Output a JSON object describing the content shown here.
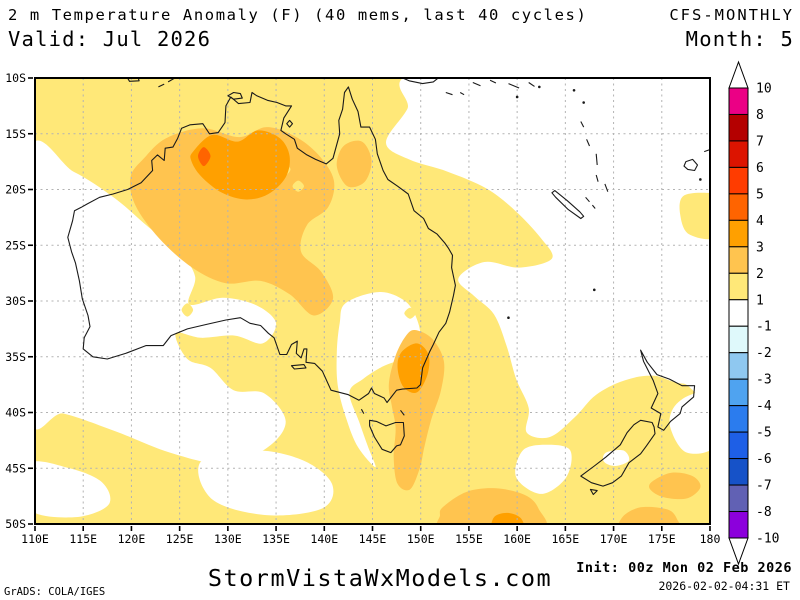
{
  "header": {
    "title": "2 m Temperature Anomaly (F) (40 mems, last 40 cycles)",
    "model": "CFS-MONTHLY",
    "valid_label": "Valid: Jul 2026",
    "month_label": "Month: 5"
  },
  "footer": {
    "engine_credit": "GrADS: COLA/IGES",
    "site": "StormVistaWxModels.com",
    "init_label": "Init: 00z Mon 02 Feb 2026",
    "generated": "2026-02-02-04:31 ET"
  },
  "colorbar": {
    "labels": [
      "10",
      "8",
      "7",
      "6",
      "5",
      "4",
      "3",
      "2",
      "1",
      "-1",
      "-2",
      "-3",
      "-4",
      "-5",
      "-6",
      "-7",
      "-8",
      "-10"
    ],
    "colors": [
      "#EB0085",
      "#B40000",
      "#DC1400",
      "#FF3C00",
      "#FF6400",
      "#FFA000",
      "#FFC44F",
      "#FFE878",
      "#FFFFFF",
      "#DFF9FB",
      "#8FC8F0",
      "#4FA3F0",
      "#2B7CEE",
      "#1E5FE6",
      "#1652C8",
      "#6161B4",
      "#8C00DC"
    ]
  },
  "map": {
    "lon_range": [
      110,
      180
    ],
    "lat_range": [
      10,
      50
    ],
    "grid_color": "#b3b3b3",
    "lat_ticks": [
      {
        "v": 10,
        "label": "10S"
      },
      {
        "v": 15,
        "label": "15S"
      },
      {
        "v": 20,
        "label": "20S"
      },
      {
        "v": 25,
        "label": "25S"
      },
      {
        "v": 30,
        "label": "30S"
      },
      {
        "v": 35,
        "label": "35S"
      },
      {
        "v": 40,
        "label": "40S"
      },
      {
        "v": 45,
        "label": "45S"
      },
      {
        "v": 50,
        "label": "50S"
      }
    ],
    "lon_ticks": [
      {
        "v": 110,
        "label": "110E"
      },
      {
        "v": 115,
        "label": "115E"
      },
      {
        "v": 120,
        "label": "120E"
      },
      {
        "v": 125,
        "label": "125E"
      },
      {
        "v": 130,
        "label": "130E"
      },
      {
        "v": 135,
        "label": "135E"
      },
      {
        "v": 140,
        "label": "140E"
      },
      {
        "v": 145,
        "label": "145E"
      },
      {
        "v": 150,
        "label": "150E"
      },
      {
        "v": 155,
        "label": "155E"
      },
      {
        "v": 160,
        "label": "160E"
      },
      {
        "v": 165,
        "label": "165E"
      },
      {
        "v": 170,
        "label": "170E"
      },
      {
        "v": 175,
        "label": "175E"
      },
      {
        "v": 180,
        "label": "180"
      }
    ],
    "level_colors": {
      "below_1": "#FFFFFF",
      "1_2": "#FFE878",
      "2_3": "#FFC44F",
      "3_4": "#FFA000",
      "4_5": "#FF6400"
    },
    "regions": [
      {
        "level": "below_1",
        "pts": [
          [
            109.3,
            17
          ],
          [
            114,
            18.4
          ],
          [
            118.3,
            20.8
          ],
          [
            121.8,
            23.4
          ],
          [
            124.8,
            25.4
          ],
          [
            126.6,
            27.8
          ],
          [
            126,
            30.3
          ],
          [
            129.5,
            29.7
          ],
          [
            133,
            30.4
          ],
          [
            135,
            32
          ],
          [
            133.6,
            33.8
          ],
          [
            130.7,
            33.1
          ],
          [
            127.2,
            33.3
          ],
          [
            124.6,
            32.9
          ],
          [
            125.8,
            35.2
          ],
          [
            128.2,
            36
          ],
          [
            130.6,
            38
          ],
          [
            133.8,
            38.3
          ],
          [
            136,
            40.8
          ],
          [
            134,
            43.2
          ],
          [
            129.6,
            44.6
          ],
          [
            124,
            43.6
          ],
          [
            118.4,
            41.7
          ],
          [
            113,
            40.1
          ],
          [
            109.3,
            39.8
          ]
        ]
      },
      {
        "level": "below_1",
        "pts": [
          [
            142.2,
            30.2
          ],
          [
            145.6,
            29.2
          ],
          [
            148.2,
            29.9
          ],
          [
            149.5,
            31.4
          ],
          [
            149.9,
            33.4
          ],
          [
            148.4,
            35
          ],
          [
            146,
            35.9
          ],
          [
            144,
            37
          ],
          [
            142.6,
            38.2
          ],
          [
            143.6,
            40.8
          ],
          [
            144.5,
            43
          ],
          [
            145.3,
            44.9
          ],
          [
            143.5,
            43.1
          ],
          [
            142.3,
            40.6
          ],
          [
            141.4,
            37.6
          ],
          [
            141.3,
            34.6
          ],
          [
            141.6,
            32
          ]
        ]
      },
      {
        "level": "below_1",
        "pts": [
          [
            150.6,
            9.4
          ],
          [
            148.6,
            12.8
          ],
          [
            146.4,
            15.8
          ],
          [
            148.8,
            17.3
          ],
          [
            152.8,
            18.4
          ],
          [
            156.8,
            19.9
          ],
          [
            159.8,
            21.9
          ],
          [
            162.4,
            24.3
          ],
          [
            163.6,
            26.2
          ],
          [
            160.2,
            27
          ],
          [
            156.6,
            26.5
          ],
          [
            153.9,
            28
          ],
          [
            155.6,
            29.6
          ],
          [
            157.6,
            31.2
          ],
          [
            158.9,
            34
          ],
          [
            159.9,
            37
          ],
          [
            161.2,
            39.6
          ],
          [
            161,
            41.8
          ],
          [
            163.4,
            42.2
          ],
          [
            166,
            40.4
          ],
          [
            168.2,
            38.4
          ],
          [
            171.2,
            37.1
          ],
          [
            174.2,
            36.7
          ],
          [
            177.2,
            37.4
          ],
          [
            180.7,
            36.6
          ],
          [
            180.7,
            9.4
          ]
        ]
      },
      {
        "level": "below_1",
        "pts": [
          [
            159.9,
            45.8
          ],
          [
            160.6,
            43.4
          ],
          [
            163.1,
            42.9
          ],
          [
            165.5,
            43.4
          ],
          [
            165.1,
            45.8
          ],
          [
            162.5,
            47.3
          ]
        ]
      },
      {
        "level": "below_1",
        "pts": [
          [
            169.2,
            43.6
          ],
          [
            171,
            43.4
          ],
          [
            171.6,
            44.3
          ],
          [
            170.2,
            44.8
          ],
          [
            169,
            44.4
          ]
        ]
      },
      {
        "level": "below_1",
        "pts": [
          [
            176.2,
            39.6
          ],
          [
            178,
            38.4
          ],
          [
            180.7,
            38.2
          ],
          [
            180.7,
            42.8
          ],
          [
            177.6,
            43.6
          ],
          [
            175.9,
            41.4
          ]
        ]
      },
      {
        "level": "below_1",
        "pts": [
          [
            109.3,
            44.6
          ],
          [
            113.6,
            45
          ],
          [
            117,
            46.3
          ],
          [
            117.6,
            48.3
          ],
          [
            114,
            49.4
          ],
          [
            109.3,
            48.6
          ]
        ]
      },
      {
        "level": "below_1",
        "pts": [
          [
            127.2,
            44.4
          ],
          [
            132.8,
            43.4
          ],
          [
            137.8,
            44.3
          ],
          [
            140.8,
            46.4
          ],
          [
            139.8,
            48.6
          ],
          [
            134,
            49.2
          ],
          [
            128.4,
            47.8
          ]
        ]
      },
      {
        "level": "1_2",
        "pts": [
          [
            177.2,
            20.6
          ],
          [
            179.4,
            20.3
          ],
          [
            180.7,
            20.8
          ],
          [
            180.7,
            24.2
          ],
          [
            177.8,
            24
          ],
          [
            176.9,
            22.2
          ]
        ]
      },
      {
        "level": "1_2",
        "pts": [
          [
            125.8,
            30.2
          ],
          [
            126.4,
            30.8
          ],
          [
            125.8,
            31.4
          ],
          [
            125.2,
            30.8
          ]
        ]
      },
      {
        "level": "1_2",
        "pts": [
          [
            148.9,
            30.6
          ],
          [
            149.5,
            31.1
          ],
          [
            148.9,
            31.6
          ],
          [
            148.3,
            31.1
          ]
        ]
      },
      {
        "level": "2_3",
        "pts": [
          [
            121.3,
            17.2
          ],
          [
            123.6,
            15.4
          ],
          [
            127.4,
            14.5
          ],
          [
            131.2,
            15.3
          ],
          [
            134,
            14.4
          ],
          [
            136.9,
            15.2
          ],
          [
            139.4,
            16.9
          ],
          [
            141,
            19.2
          ],
          [
            140.4,
            21.6
          ],
          [
            138.2,
            23.2
          ],
          [
            137.6,
            25.6
          ],
          [
            139.7,
            27.4
          ],
          [
            140.9,
            29.8
          ],
          [
            138.9,
            31.3
          ],
          [
            136.4,
            29.4
          ],
          [
            133.4,
            28.2
          ],
          [
            129.8,
            28.4
          ],
          [
            126.3,
            27
          ],
          [
            122.9,
            24.4
          ],
          [
            120.4,
            21.4
          ],
          [
            119.9,
            18.9
          ]
        ]
      },
      {
        "level": "2_3",
        "pts": [
          [
            142,
            16.1
          ],
          [
            143.9,
            15.7
          ],
          [
            144.9,
            17.4
          ],
          [
            144.2,
            19.3
          ],
          [
            142.4,
            19.7
          ],
          [
            141.3,
            17.9
          ]
        ]
      },
      {
        "level": "2_3",
        "pts": [
          [
            149.4,
            32.6
          ],
          [
            151.2,
            33.4
          ],
          [
            152.4,
            35.4
          ],
          [
            152.1,
            38
          ],
          [
            151.1,
            40.6
          ],
          [
            150.4,
            43
          ],
          [
            149.9,
            45
          ],
          [
            148.9,
            46.9
          ],
          [
            147.6,
            46.4
          ],
          [
            147.2,
            44
          ],
          [
            147.4,
            41.4
          ],
          [
            147,
            39.4
          ],
          [
            146.7,
            37.4
          ],
          [
            147.4,
            34.9
          ],
          [
            148.4,
            33.2
          ]
        ]
      },
      {
        "level": "2_3",
        "pts": [
          [
            174,
            46.2
          ],
          [
            176,
            45.4
          ],
          [
            178.2,
            45.7
          ],
          [
            179,
            46.7
          ],
          [
            177.6,
            47.7
          ],
          [
            175.2,
            47.6
          ],
          [
            173.8,
            46.9
          ]
        ]
      },
      {
        "level": "2_3",
        "pts": [
          [
            170.9,
            49.4
          ],
          [
            172.8,
            48.5
          ],
          [
            175.6,
            48.7
          ],
          [
            176.6,
            49.6
          ],
          [
            176.6,
            50.6
          ],
          [
            171,
            50.6
          ]
        ]
      },
      {
        "level": "2_3",
        "pts": [
          [
            152.4,
            48.4
          ],
          [
            154.8,
            47.1
          ],
          [
            157.8,
            46.8
          ],
          [
            160.8,
            47.4
          ],
          [
            162.2,
            48.6
          ],
          [
            162.4,
            50.6
          ],
          [
            152.6,
            50.6
          ],
          [
            152,
            49.2
          ]
        ]
      },
      {
        "level": "1_2",
        "pts": [
          [
            135.8,
            17.6
          ],
          [
            136.5,
            18.2
          ],
          [
            135.8,
            18.8
          ],
          [
            135.1,
            18.2
          ]
        ]
      },
      {
        "level": "1_2",
        "pts": [
          [
            137.3,
            19.2
          ],
          [
            137.9,
            19.7
          ],
          [
            137.3,
            20.2
          ],
          [
            136.7,
            19.7
          ]
        ]
      },
      {
        "level": "3_4",
        "pts": [
          [
            126.4,
            16.6
          ],
          [
            128.4,
            15.1
          ],
          [
            131,
            15.7
          ],
          [
            133.1,
            14.7
          ],
          [
            135.4,
            15.4
          ],
          [
            136.4,
            17
          ],
          [
            136,
            18.9
          ],
          [
            134.2,
            20.4
          ],
          [
            131.9,
            20.9
          ],
          [
            129.4,
            20.3
          ],
          [
            127.2,
            18.8
          ],
          [
            126.2,
            17.4
          ]
        ]
      },
      {
        "level": "3_4",
        "pts": [
          [
            148,
            34.6
          ],
          [
            149.6,
            33.8
          ],
          [
            150.8,
            34.8
          ],
          [
            150.7,
            36.6
          ],
          [
            149.6,
            38.2
          ],
          [
            148.2,
            37.7
          ],
          [
            147.6,
            36
          ]
        ]
      },
      {
        "level": "3_4",
        "pts": [
          [
            157.6,
            49.4
          ],
          [
            159,
            49
          ],
          [
            160.4,
            49.5
          ],
          [
            160.5,
            50.6
          ],
          [
            157.6,
            50.6
          ]
        ]
      },
      {
        "level": "4_5",
        "pts": [
          [
            127.5,
            16.2
          ],
          [
            128.2,
            17
          ],
          [
            127.5,
            17.9
          ],
          [
            126.9,
            17
          ]
        ]
      }
    ]
  },
  "chart_data": {
    "type": "filled-contour-map",
    "variable": "2 m Temperature Anomaly",
    "units": "F",
    "model": "CFS-MONTHLY, 40 members, last 40 cycles",
    "valid": "Jul 2026",
    "lead_month": 5,
    "domain": "110E-180, 10S-50S (Australia / New Zealand)",
    "contour_levels": [
      -10,
      -8,
      -7,
      -6,
      -5,
      -4,
      -3,
      -2,
      -1,
      1,
      2,
      3,
      4,
      5,
      6,
      7,
      8,
      10
    ],
    "summary": "Positive anomalies (+1 to +5 F) over most of Australia; maxima over NT (~128-136E, 15-20S) and SE coast (~148-151E, 34-38S); near-zero over WA coast, SA interior and Coral/Tasman Sea."
  }
}
